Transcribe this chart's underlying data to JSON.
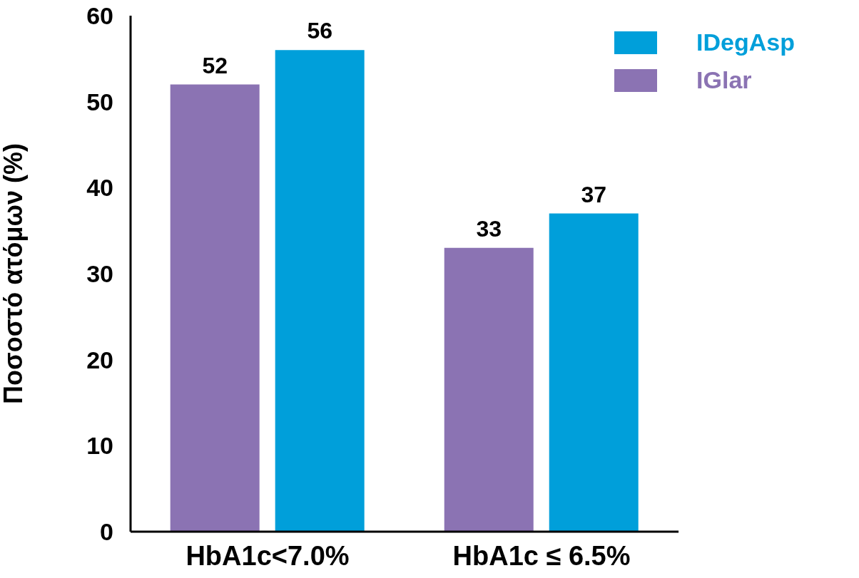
{
  "chart_data": {
    "type": "bar",
    "ylabel": "Ποσοστό ατόμων (%)",
    "categories": [
      "HbA1c<7.0%",
      "HbA1c ≤ 6.5%"
    ],
    "series": [
      {
        "name": "IGlar",
        "color": "#8b73b3",
        "values": [
          52,
          33
        ]
      },
      {
        "name": "IDegAsp",
        "color": "#009fda",
        "values": [
          56,
          37
        ]
      }
    ],
    "ylim": [
      0,
      60
    ],
    "yticks": [
      0,
      10,
      20,
      30,
      40,
      50,
      60
    ],
    "grid": false,
    "legend": "top right",
    "data_labels": true
  }
}
